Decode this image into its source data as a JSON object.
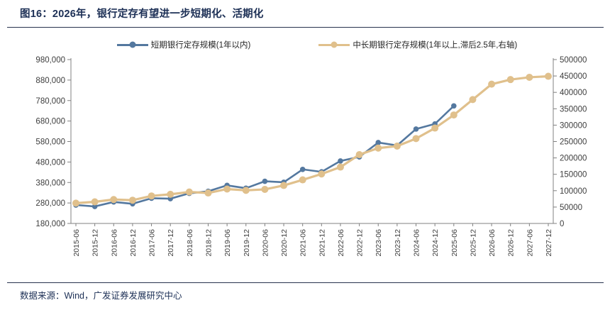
{
  "page": {
    "title": "图16：2026年，银行定存有望进一步短期化、活期化",
    "source": "数据来源：Wind，广发证券发展研究中心"
  },
  "colors": {
    "title_text": "#1c2f55",
    "rule": "#27324e",
    "short_series": "#54789F",
    "long_series": "#E0C08C",
    "axis_line": "#808080",
    "tick_text": "#3d3d3d"
  },
  "chart_data": {
    "type": "line",
    "title": "图16：2026年，银行定存有望进一步短期化、活期化",
    "legend_position": "top",
    "grid": false,
    "categories": [
      "2015-06",
      "2015-12",
      "2016-06",
      "2016-12",
      "2017-06",
      "2017-12",
      "2018-06",
      "2018-12",
      "2019-06",
      "2019-12",
      "2020-06",
      "2020-12",
      "2021-06",
      "2021-12",
      "2022-06",
      "2022-12",
      "2023-06",
      "2023-12",
      "2024-06",
      "2024-12",
      "2025-06",
      "2025-12",
      "2026-06",
      "2026-12",
      "2027-06",
      "2027-12"
    ],
    "series": [
      {
        "name": "短期银行定存规模(1年以内)",
        "axis": "left",
        "color_key": "short_series",
        "values": [
          270000,
          263000,
          285000,
          276000,
          303000,
          301000,
          327000,
          337000,
          366000,
          352000,
          386000,
          381000,
          444000,
          432000,
          485000,
          505000,
          575000,
          561000,
          641000,
          666000,
          754000
        ]
      },
      {
        "name": "中长期银行定存规模(1年以上,滞后2.5年,右轴)",
        "axis": "right",
        "color_key": "long_series",
        "values": [
          62000,
          66000,
          73000,
          71000,
          84000,
          89000,
          96000,
          93000,
          105000,
          101000,
          104000,
          116000,
          133000,
          151000,
          172000,
          210000,
          230000,
          236000,
          259000,
          291000,
          331000,
          378000,
          425000,
          439000,
          446000,
          449000
        ]
      }
    ],
    "left_axis": {
      "min": 180000,
      "max": 980000,
      "tick_labels": [
        "180,000",
        "280,000",
        "380,000",
        "480,000",
        "580,000",
        "680,000",
        "780,000",
        "880,000",
        "980,000"
      ]
    },
    "right_axis": {
      "min": 0,
      "max": 500000,
      "tick_labels": [
        "0",
        "50000",
        "100000",
        "150000",
        "200000",
        "250000",
        "300000",
        "350000",
        "400000",
        "450000",
        "500000"
      ]
    }
  }
}
